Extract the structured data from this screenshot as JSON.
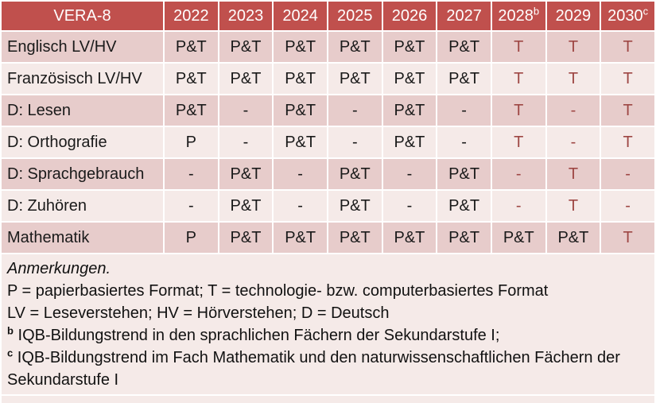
{
  "colors": {
    "header_bg": "#C0504D",
    "header_text": "#FFFFFF",
    "row_dark": "#E7CCCB",
    "row_light": "#F5EAE8",
    "grid": "#FFFFFF",
    "accent_text": "#9E4744",
    "body_text": "#1A1A1A"
  },
  "table": {
    "corner_label": "VERA-8",
    "columns": [
      {
        "label": "2022",
        "sup": ""
      },
      {
        "label": "2023",
        "sup": ""
      },
      {
        "label": "2024",
        "sup": ""
      },
      {
        "label": "2025",
        "sup": ""
      },
      {
        "label": "2026",
        "sup": ""
      },
      {
        "label": "2027",
        "sup": ""
      },
      {
        "label": "2028",
        "sup": "b"
      },
      {
        "label": "2029",
        "sup": ""
      },
      {
        "label": "2030",
        "sup": "c"
      }
    ],
    "rows": [
      {
        "label": "Englisch LV/HV",
        "cells": [
          {
            "v": "P&T",
            "red": false
          },
          {
            "v": "P&T",
            "red": false
          },
          {
            "v": "P&T",
            "red": false
          },
          {
            "v": "P&T",
            "red": false
          },
          {
            "v": "P&T",
            "red": false
          },
          {
            "v": "P&T",
            "red": false
          },
          {
            "v": "T",
            "red": true
          },
          {
            "v": "T",
            "red": true
          },
          {
            "v": "T",
            "red": true
          }
        ]
      },
      {
        "label": "Französisch LV/HV",
        "cells": [
          {
            "v": "P&T",
            "red": false
          },
          {
            "v": "P&T",
            "red": false
          },
          {
            "v": "P&T",
            "red": false
          },
          {
            "v": "P&T",
            "red": false
          },
          {
            "v": "P&T",
            "red": false
          },
          {
            "v": "P&T",
            "red": false
          },
          {
            "v": "T",
            "red": true
          },
          {
            "v": "T",
            "red": true
          },
          {
            "v": "T",
            "red": true
          }
        ]
      },
      {
        "label": "D: Lesen",
        "cells": [
          {
            "v": "P&T",
            "red": false
          },
          {
            "v": "-",
            "red": false
          },
          {
            "v": "P&T",
            "red": false
          },
          {
            "v": "-",
            "red": false
          },
          {
            "v": "P&T",
            "red": false
          },
          {
            "v": "-",
            "red": false
          },
          {
            "v": "T",
            "red": true
          },
          {
            "v": "-",
            "red": true
          },
          {
            "v": "T",
            "red": true
          }
        ]
      },
      {
        "label": "D: Orthografie",
        "cells": [
          {
            "v": "P",
            "red": false
          },
          {
            "v": "-",
            "red": false
          },
          {
            "v": "P&T",
            "red": false
          },
          {
            "v": "-",
            "red": false
          },
          {
            "v": "P&T",
            "red": false
          },
          {
            "v": "-",
            "red": false
          },
          {
            "v": "T",
            "red": true
          },
          {
            "v": "-",
            "red": true
          },
          {
            "v": "T",
            "red": true
          }
        ]
      },
      {
        "label": "D: Sprachgebrauch",
        "cells": [
          {
            "v": "-",
            "red": false
          },
          {
            "v": "P&T",
            "red": false
          },
          {
            "v": "-",
            "red": false
          },
          {
            "v": "P&T",
            "red": false
          },
          {
            "v": "-",
            "red": false
          },
          {
            "v": "P&T",
            "red": false
          },
          {
            "v": "-",
            "red": true
          },
          {
            "v": "T",
            "red": true
          },
          {
            "v": "-",
            "red": true
          }
        ]
      },
      {
        "label": "D: Zuhören",
        "cells": [
          {
            "v": "-",
            "red": false
          },
          {
            "v": "P&T",
            "red": false
          },
          {
            "v": "-",
            "red": false
          },
          {
            "v": "P&T",
            "red": false
          },
          {
            "v": "-",
            "red": false
          },
          {
            "v": "P&T",
            "red": false
          },
          {
            "v": "-",
            "red": true
          },
          {
            "v": "T",
            "red": true
          },
          {
            "v": "-",
            "red": true
          }
        ]
      },
      {
        "label": "Mathematik",
        "cells": [
          {
            "v": "P",
            "red": false
          },
          {
            "v": "P&T",
            "red": false
          },
          {
            "v": "P&T",
            "red": false
          },
          {
            "v": "P&T",
            "red": false
          },
          {
            "v": "P&T",
            "red": false
          },
          {
            "v": "P&T",
            "red": false
          },
          {
            "v": "P&T",
            "red": false
          },
          {
            "v": "P&T",
            "red": false
          },
          {
            "v": "T",
            "red": true
          }
        ]
      }
    ]
  },
  "notes": {
    "title": "Anmerkungen.",
    "lines": [
      {
        "sup": "",
        "text": "P = papierbasiertes Format; T = technologie- bzw. computerbasiertes Format"
      },
      {
        "sup": "",
        "text": "LV = Leseverstehen; HV = Hörverstehen; D = Deutsch"
      },
      {
        "sup": "b",
        "text": "IQB-Bildungstrend in den sprachlichen Fächern der Sekundarstufe I;"
      },
      {
        "sup": "c",
        "text": "IQB-Bildungstrend im Fach Mathematik und den naturwissenschaftlichen Fächern der Sekundarstufe I"
      }
    ]
  }
}
